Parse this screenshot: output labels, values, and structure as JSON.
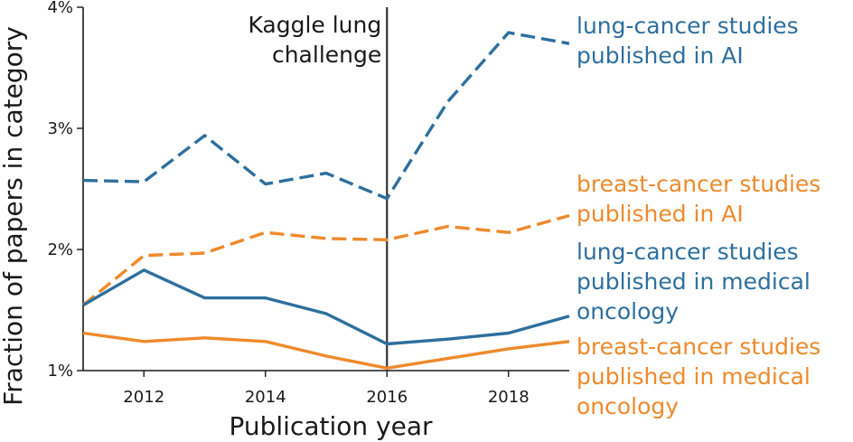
{
  "chart_data": {
    "type": "line",
    "xlabel": "Publication year",
    "ylabel": "Fraction of papers in category",
    "xlim": [
      2011,
      2019
    ],
    "ylim": [
      1,
      4
    ],
    "x_ticks": [
      2012,
      2014,
      2016,
      2018
    ],
    "y_ticks": [
      1,
      2,
      3,
      4
    ],
    "y_tick_labels": [
      "1%",
      "2%",
      "3%",
      "4%"
    ],
    "x": [
      2011,
      2012,
      2013,
      2014,
      2015,
      2016,
      2017,
      2018,
      2019
    ],
    "series": [
      {
        "name": "lung-cancer studies published in AI",
        "label_lines": [
          "lung-cancer studies",
          "published in AI"
        ],
        "color": "#2e6f9e",
        "style": "dashed",
        "values": [
          2.57,
          2.56,
          2.94,
          2.54,
          2.63,
          2.42,
          3.22,
          3.79,
          3.7
        ]
      },
      {
        "name": "breast-cancer studies published in AI",
        "label_lines": [
          "breast-cancer studies",
          "published in AI"
        ],
        "color": "#ee8a2c",
        "style": "dashed",
        "values": [
          1.54,
          1.95,
          1.97,
          2.14,
          2.09,
          2.08,
          2.19,
          2.14,
          2.28
        ]
      },
      {
        "name": "lung-cancer studies published in medical oncology",
        "label_lines": [
          "lung-cancer studies",
          "published in medical",
          "oncology"
        ],
        "color": "#2e6f9e",
        "style": "solid",
        "values": [
          1.54,
          1.83,
          1.6,
          1.6,
          1.47,
          1.22,
          1.26,
          1.31,
          1.45
        ]
      },
      {
        "name": "breast-cancer studies published in medical oncology",
        "label_lines": [
          "breast-cancer studies",
          "published in medical",
          "oncology"
        ],
        "color": "#ee8a2c",
        "style": "solid",
        "values": [
          1.31,
          1.24,
          1.27,
          1.24,
          1.12,
          1.02,
          1.1,
          1.18,
          1.24
        ]
      }
    ],
    "vline": {
      "x": 2016,
      "label_lines": [
        "Kaggle lung",
        "challenge"
      ],
      "color": "#333333"
    }
  }
}
